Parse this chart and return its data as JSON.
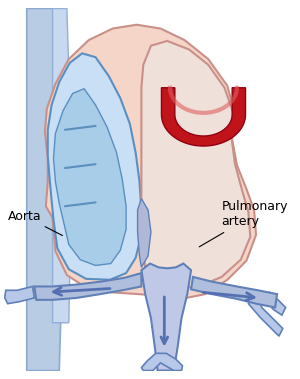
{
  "bg_color": "#ffffff",
  "heart_outer_color": "#f5d5c8",
  "heart_outer_edge": "#c9908a",
  "left_ventricle_fill": "#c8dff5",
  "left_ventricle_edge": "#5a8fc0",
  "right_ventricle_fill": "#f0e0da",
  "right_ventricle_edge": "#c9908a",
  "pulm_artery_red": "#c0141a",
  "pulm_artery_light": "#e06060",
  "vessel_blue_fill": "#b0bedd",
  "vessel_blue_edge": "#6080b8",
  "great_vessel_fill": "#b8c8e8",
  "great_vessel_edge": "#7090c8",
  "arrow_color": "#5570b0",
  "arrow_lw": 2.0,
  "label_fontsize": 9,
  "aorta_label": "Aorta",
  "pulm_label": "Pulmonary\nartery"
}
